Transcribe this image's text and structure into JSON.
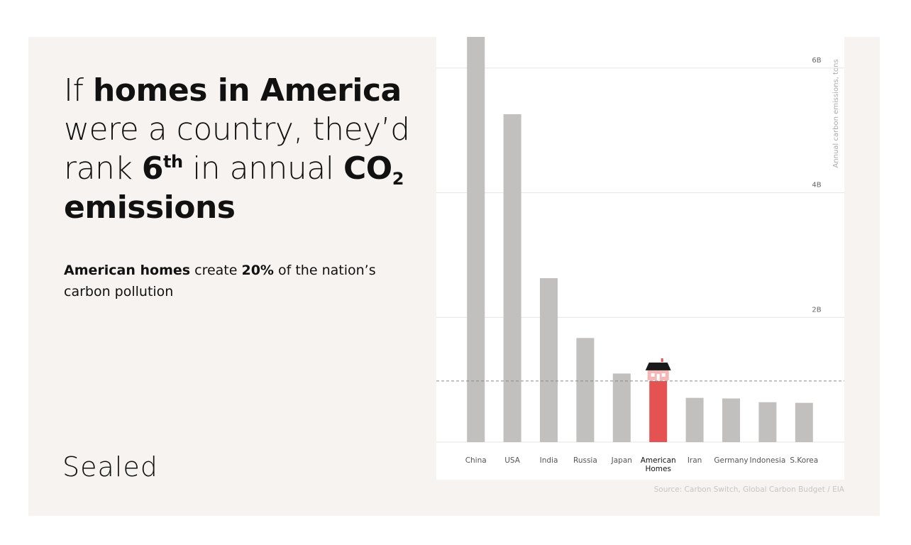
{
  "headline": [
    "If ",
    "homes in America",
    " were a country, they’d rank ",
    "6",
    "th",
    " in annual ",
    "CO",
    "2",
    " emissions"
  ],
  "subheadline": [
    "American homes",
    " create ",
    "20%",
    " of the nation’s carbon pollution"
  ],
  "brand": "Sealed",
  "chart_data": {
    "type": "bar",
    "y_label": "Annual carbon emissions, tons",
    "source": "Source: Carbon Switch, Global Carbon Budget / EIA",
    "categories": [
      "China",
      "USA",
      "India",
      "Russia",
      "Japan",
      "American Homes",
      "Iran",
      "Germany",
      "Indonesia",
      "S.Korea"
    ],
    "values": [
      6.5,
      5.26,
      2.63,
      1.67,
      1.1,
      0.98,
      0.71,
      0.7,
      0.64,
      0.63
    ],
    "colors": [
      "#c1c0be",
      "#c1c0be",
      "#c1c0be",
      "#c1c0be",
      "#c1c0be",
      "#e45352",
      "#c1c0be",
      "#c1c0be",
      "#c1c0be",
      "#c1c0be"
    ],
    "highlight": 5,
    "ylim": [
      0,
      6.5
    ],
    "yticks": [
      {
        "value": 2,
        "label": "2B"
      },
      {
        "value": 4,
        "label": "4B"
      },
      {
        "value": 6,
        "label": "6B"
      }
    ],
    "grid": true
  }
}
